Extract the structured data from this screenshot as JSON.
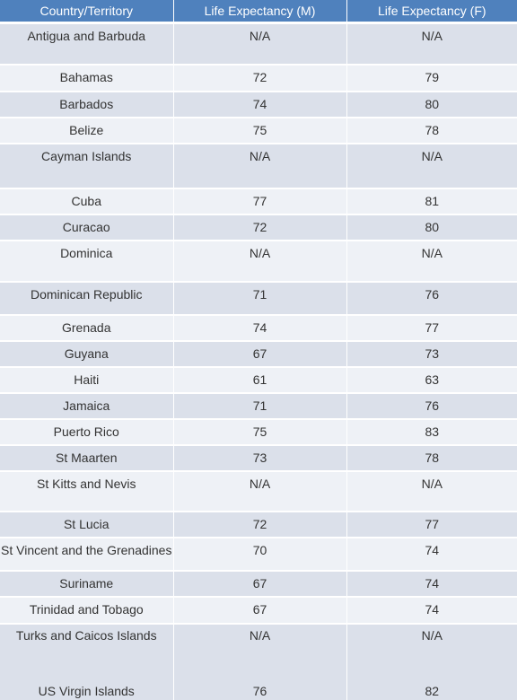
{
  "table": {
    "headers": [
      "Country/Territory",
      "Life Expectancy (M)",
      "Life Expectancy (F)"
    ],
    "rows": [
      {
        "country": "Antigua and Barbuda",
        "male": "N/A",
        "female": "N/A"
      },
      {
        "country": "Bahamas",
        "male": "72",
        "female": "79"
      },
      {
        "country": "Barbados",
        "male": "74",
        "female": "80"
      },
      {
        "country": "Belize",
        "male": "75",
        "female": "78"
      },
      {
        "country": "Cayman Islands",
        "male": "N/A",
        "female": "N/A"
      },
      {
        "country": "Cuba",
        "male": "77",
        "female": "81"
      },
      {
        "country": "Curacao",
        "male": "72",
        "female": "80"
      },
      {
        "country": "Dominica",
        "male": "N/A",
        "female": "N/A"
      },
      {
        "country": "Dominican Republic",
        "male": "71",
        "female": "76"
      },
      {
        "country": "Grenada",
        "male": "74",
        "female": "77"
      },
      {
        "country": "Guyana",
        "male": "67",
        "female": "73"
      },
      {
        "country": "Haiti",
        "male": "61",
        "female": "63"
      },
      {
        "country": "Jamaica",
        "male": "71",
        "female": "76"
      },
      {
        "country": "Puerto Rico",
        "male": "75",
        "female": "83"
      },
      {
        "country": "St Maarten",
        "male": "73",
        "female": "78"
      },
      {
        "country": "St Kitts and Nevis",
        "male": "N/A",
        "female": "N/A"
      },
      {
        "country": "St Lucia",
        "male": "72",
        "female": "77"
      },
      {
        "country": "St Vincent and the Grenadines",
        "male": "70",
        "female": "74"
      },
      {
        "country": "Suriname",
        "male": "67",
        "female": "74"
      },
      {
        "country": "Trinidad and Tobago",
        "male": "67",
        "female": "74"
      },
      {
        "country": "Turks and Caicos Islands",
        "male": "N/A",
        "female": "N/A"
      },
      {
        "country": "US Virgin Islands",
        "male": "76",
        "female": "82"
      }
    ]
  }
}
